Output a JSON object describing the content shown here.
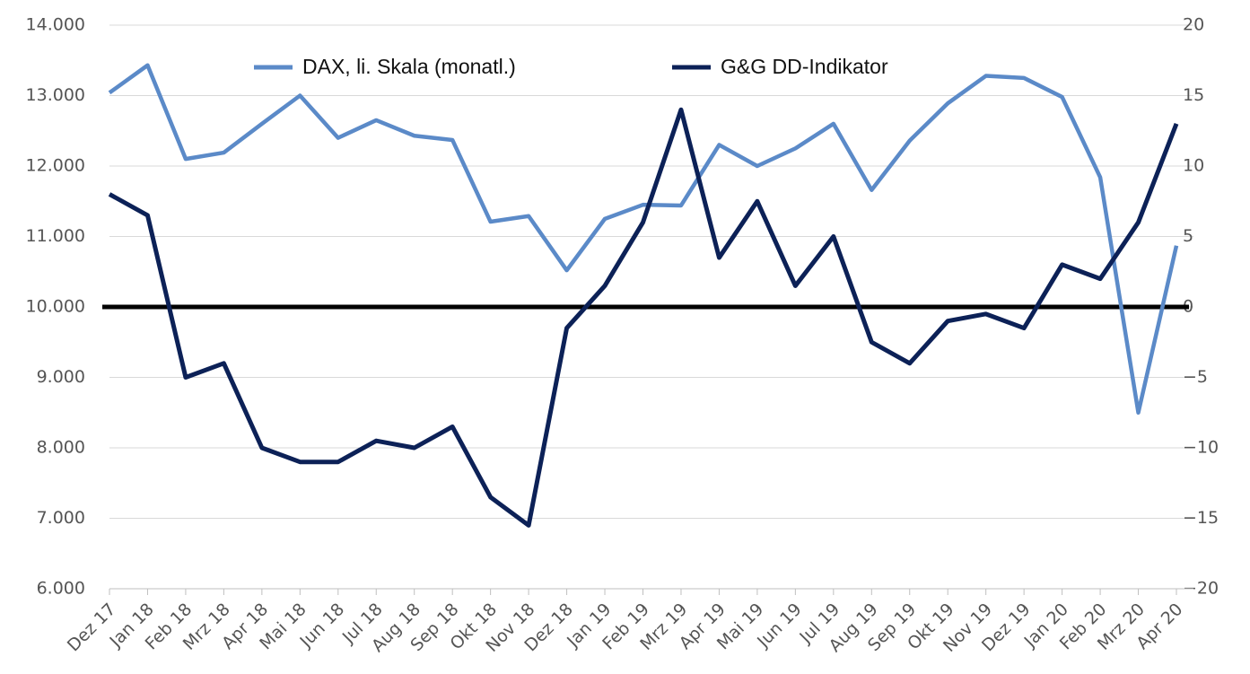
{
  "chart_data": {
    "type": "line",
    "categories": [
      "Dez 17",
      "Jan 18",
      "Feb 18",
      "Mrz 18",
      "Apr 18",
      "Mai 18",
      "Jun 18",
      "Jul 18",
      "Aug 18",
      "Sep 18",
      "Okt 18",
      "Nov 18",
      "Dez 18",
      "Jan 19",
      "Feb 19",
      "Mrz 19",
      "Apr 19",
      "Mai 19",
      "Jun 19",
      "Jul 19",
      "Aug 19",
      "Sep 19",
      "Okt 19",
      "Nov 19",
      "Dez 19",
      "Jan 20",
      "Feb 20",
      "Mrz 20",
      "Apr 20"
    ],
    "series": [
      {
        "name": "DAX, li. Skala (monatl.)",
        "color": "#5b8ac8",
        "axis": "y",
        "values": [
          13040,
          13430,
          12100,
          12190,
          12600,
          13000,
          12400,
          12650,
          12430,
          12370,
          11210,
          11290,
          10520,
          11250,
          11450,
          11440,
          12300,
          12000,
          12250,
          12600,
          11660,
          12360,
          12890,
          13280,
          13250,
          12980,
          11840,
          8500,
          10870
        ]
      },
      {
        "name": "G&G DD-Indikator",
        "color": "#0c2157",
        "axis": "y2",
        "values": [
          8,
          6.5,
          -5,
          -4,
          -10,
          -11,
          -11,
          -9.5,
          -10,
          -8.5,
          -13.5,
          -15.5,
          -1.5,
          1.5,
          6,
          14,
          3.5,
          7.5,
          1.5,
          5,
          -2.5,
          -4,
          -1,
          -0.5,
          -1.5,
          3,
          2,
          6,
          13
        ]
      }
    ],
    "ylim": [
      6000,
      14000
    ],
    "yticks": [
      {
        "value": 6000,
        "label": "6.000"
      },
      {
        "value": 7000,
        "label": "7.000"
      },
      {
        "value": 8000,
        "label": "8.000"
      },
      {
        "value": 9000,
        "label": "9.000"
      },
      {
        "value": 10000,
        "label": "10.000"
      },
      {
        "value": 11000,
        "label": "11.000"
      },
      {
        "value": 12000,
        "label": "12.000"
      },
      {
        "value": 13000,
        "label": "13.000"
      },
      {
        "value": 14000,
        "label": "14.000"
      }
    ],
    "y2lim": [
      -20,
      20
    ],
    "y2ticks": [
      {
        "value": -20,
        "label": "−20"
      },
      {
        "value": -15,
        "label": "−15"
      },
      {
        "value": -10,
        "label": "−10"
      },
      {
        "value": -5,
        "label": "−5"
      },
      0,
      5,
      10,
      15,
      20
    ],
    "reference_line": {
      "axis": "y2",
      "value": 0,
      "color": "#000000"
    },
    "grid": true,
    "legend": "top"
  }
}
